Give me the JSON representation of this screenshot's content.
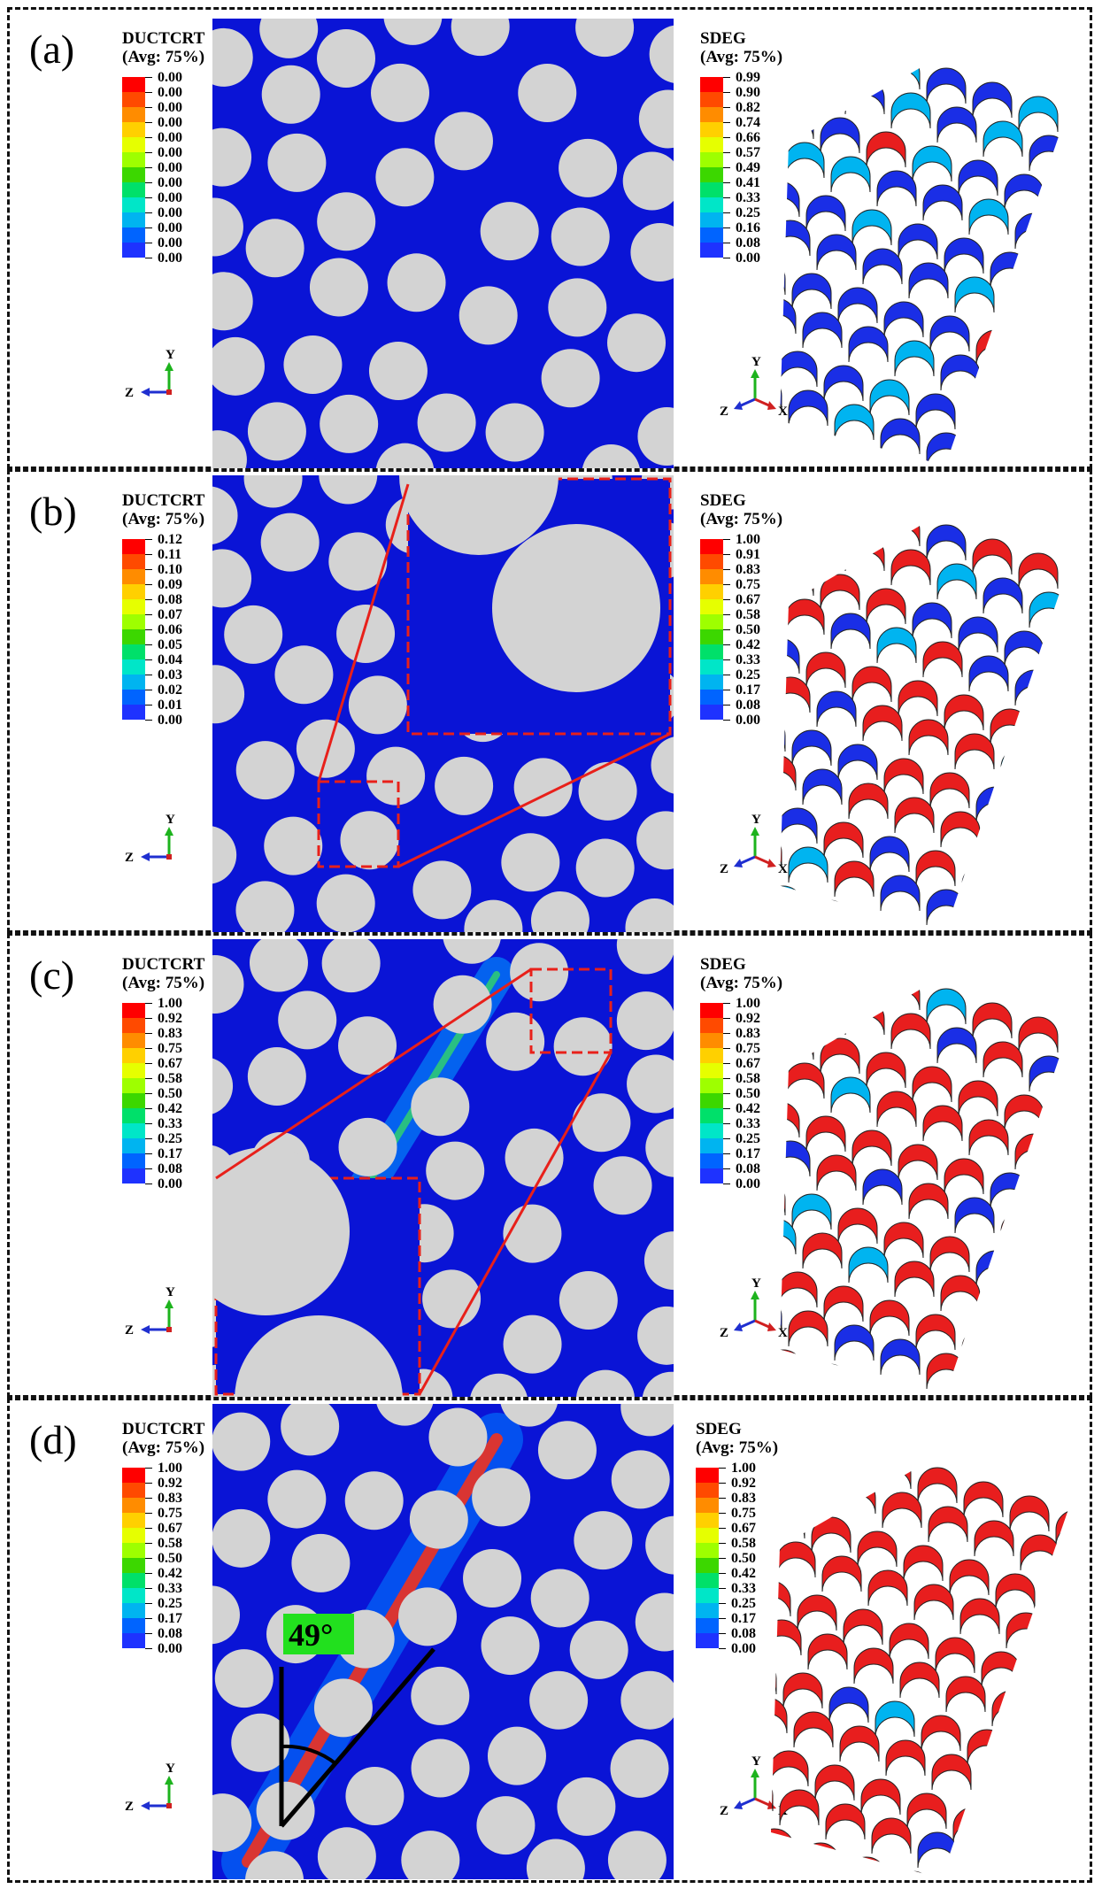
{
  "panels": [
    {
      "id": "a",
      "label": "(a)",
      "left_legend": {
        "title": "DUCTCRT",
        "avg": "(Avg: 75%)",
        "values": [
          "0.00",
          "0.00",
          "0.00",
          "0.00",
          "0.00",
          "0.00",
          "0.00",
          "0.00",
          "0.00",
          "0.00",
          "0.00",
          "0.00",
          "0.00"
        ]
      },
      "right_legend": {
        "title": "SDEG",
        "avg": "(Avg: 75%)",
        "values": [
          "0.99",
          "0.90",
          "0.82",
          "0.74",
          "0.66",
          "0.57",
          "0.49",
          "0.41",
          "0.33",
          "0.25",
          "0.16",
          "0.08",
          "0.00"
        ]
      },
      "triad_left": {
        "y": "Y",
        "z": "Z"
      },
      "triad_right": {
        "y": "Y",
        "z": "Z",
        "x": "X"
      }
    },
    {
      "id": "b",
      "label": "(b)",
      "left_legend": {
        "title": "DUCTCRT",
        "avg": "(Avg: 75%)",
        "values": [
          "0.12",
          "0.11",
          "0.10",
          "0.09",
          "0.08",
          "0.07",
          "0.06",
          "0.05",
          "0.04",
          "0.03",
          "0.02",
          "0.01",
          "0.00"
        ]
      },
      "right_legend": {
        "title": "SDEG",
        "avg": "(Avg: 75%)",
        "values": [
          "1.00",
          "0.91",
          "0.83",
          "0.75",
          "0.67",
          "0.58",
          "0.50",
          "0.42",
          "0.33",
          "0.25",
          "0.17",
          "0.08",
          "0.00"
        ]
      },
      "triad_left": {
        "y": "Y",
        "z": "Z"
      },
      "triad_right": {
        "y": "Y",
        "z": "Z",
        "x": "X"
      }
    },
    {
      "id": "c",
      "label": "(c)",
      "left_legend": {
        "title": "DUCTCRT",
        "avg": "(Avg: 75%)",
        "values": [
          "1.00",
          "0.92",
          "0.83",
          "0.75",
          "0.67",
          "0.58",
          "0.50",
          "0.42",
          "0.33",
          "0.25",
          "0.17",
          "0.08",
          "0.00"
        ]
      },
      "right_legend": {
        "title": "SDEG",
        "avg": "(Avg: 75%)",
        "values": [
          "1.00",
          "0.92",
          "0.83",
          "0.75",
          "0.67",
          "0.58",
          "0.50",
          "0.42",
          "0.33",
          "0.25",
          "0.17",
          "0.08",
          "0.00"
        ]
      },
      "triad_left": {
        "y": "Y",
        "z": "Z"
      },
      "triad_right": {
        "y": "Y",
        "z": "Z",
        "x": "X"
      }
    },
    {
      "id": "d",
      "label": "(d)",
      "left_legend": {
        "title": "DUCTCRT",
        "avg": "(Avg: 75%)",
        "values": [
          "1.00",
          "0.92",
          "0.83",
          "0.75",
          "0.67",
          "0.58",
          "0.50",
          "0.42",
          "0.33",
          "0.25",
          "0.17",
          "0.08",
          "0.00"
        ]
      },
      "right_legend": {
        "title": "SDEG",
        "avg": "(Avg: 75%)",
        "values": [
          "1.00",
          "0.92",
          "0.83",
          "0.75",
          "0.67",
          "0.58",
          "0.50",
          "0.42",
          "0.33",
          "0.25",
          "0.17",
          "0.08",
          "0.00"
        ]
      },
      "triad_left": {
        "y": "Y",
        "z": "Z"
      },
      "triad_right": {
        "y": "Y",
        "z": "Z",
        "x": "X"
      },
      "angle_label": "49°"
    }
  ],
  "colors": {
    "matrix": "#0a14d6",
    "fiber": "#d3d3d3",
    "zoom_box": "#e8201a",
    "angle_badge": "#22e01e",
    "scale": [
      "#ff0000",
      "#ff4a00",
      "#ff8c00",
      "#ffd000",
      "#e6ff00",
      "#9eff00",
      "#3cd700",
      "#00e06a",
      "#00e6c8",
      "#00b4f0",
      "#0064ff",
      "#1e32ff",
      "#0000e6"
    ]
  }
}
